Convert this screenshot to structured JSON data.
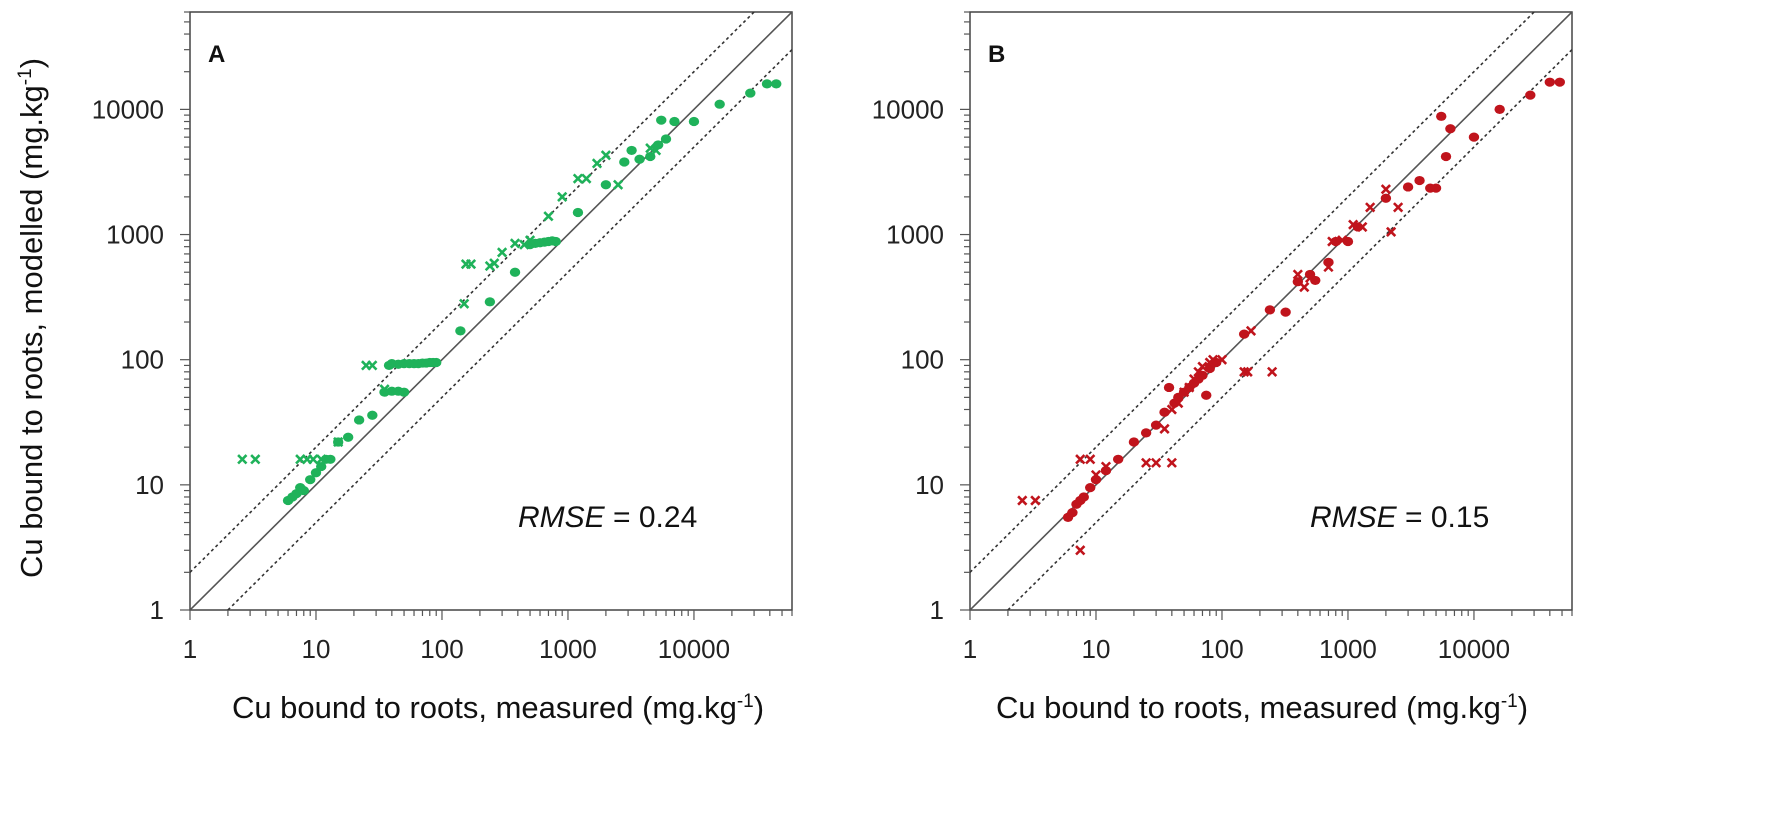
{
  "chart_data": [
    {
      "type": "scatter",
      "panel_label": "A",
      "xlabel": "Cu bound to roots, measured (mg.kg",
      "xlabel_sup": "-1",
      "xlabel_end": ")",
      "ylabel": "Cu bound to roots, modelled (mg.kg",
      "ylabel_sup": "-1",
      "ylabel_end": ")",
      "x_scale": "log",
      "y_scale": "log",
      "xlim": [
        1,
        60000
      ],
      "ylim": [
        1,
        60000
      ],
      "x_ticks": [
        "1",
        "10",
        "100",
        "1000",
        "10000"
      ],
      "y_ticks": [
        "1",
        "10",
        "100",
        "1000",
        "10000"
      ],
      "annotation": {
        "label": "RMSE",
        "value": " = 0.24"
      },
      "reference_lines": {
        "identity": "solid",
        "bounds": "dotted",
        "bound_factor": 2
      },
      "color": "#1fb25a",
      "series": [
        {
          "marker": "dot",
          "points": [
            [
              6,
              7.5
            ],
            [
              6.5,
              8
            ],
            [
              7,
              8.5
            ],
            [
              7.5,
              9.5
            ],
            [
              8,
              9
            ],
            [
              9,
              11
            ],
            [
              10,
              12.5
            ],
            [
              11,
              14
            ],
            [
              12,
              16
            ],
            [
              13,
              16
            ],
            [
              15,
              22
            ],
            [
              18,
              24
            ],
            [
              22,
              33
            ],
            [
              28,
              36
            ],
            [
              35,
              55
            ],
            [
              40,
              56
            ],
            [
              45,
              56
            ],
            [
              50,
              55
            ],
            [
              38,
              90
            ],
            [
              40,
              93
            ],
            [
              45,
              92
            ],
            [
              50,
              93
            ],
            [
              55,
              93
            ],
            [
              60,
              93
            ],
            [
              65,
              93
            ],
            [
              70,
              94
            ],
            [
              75,
              94
            ],
            [
              80,
              95
            ],
            [
              85,
              95
            ],
            [
              90,
              95
            ],
            [
              140,
              170
            ],
            [
              240,
              290
            ],
            [
              380,
              500
            ],
            [
              500,
              830
            ],
            [
              550,
              850
            ],
            [
              600,
              860
            ],
            [
              650,
              870
            ],
            [
              700,
              880
            ],
            [
              750,
              890
            ],
            [
              800,
              880
            ],
            [
              1200,
              1500
            ],
            [
              2000,
              2500
            ],
            [
              2800,
              3800
            ],
            [
              3200,
              4700
            ],
            [
              3700,
              4000
            ],
            [
              4500,
              4200
            ],
            [
              5200,
              5200
            ],
            [
              5500,
              8200
            ],
            [
              6000,
              5800
            ],
            [
              7000,
              8000
            ],
            [
              10000,
              8000
            ],
            [
              16000,
              11000
            ],
            [
              28000,
              13500
            ],
            [
              38000,
              16000
            ],
            [
              45000,
              16000
            ]
          ]
        },
        {
          "marker": "cross",
          "points": [
            [
              2.6,
              16
            ],
            [
              3.3,
              16
            ],
            [
              7.5,
              16
            ],
            [
              8.5,
              16
            ],
            [
              9.5,
              16
            ],
            [
              11,
              16
            ],
            [
              15,
              22
            ],
            [
              25,
              90
            ],
            [
              28,
              90
            ],
            [
              35,
              58
            ],
            [
              150,
              280
            ],
            [
              155,
              580
            ],
            [
              170,
              580
            ],
            [
              240,
              560
            ],
            [
              260,
              590
            ],
            [
              300,
              720
            ],
            [
              380,
              850
            ],
            [
              450,
              830
            ],
            [
              500,
              900
            ],
            [
              700,
              1400
            ],
            [
              900,
              2000
            ],
            [
              1200,
              2800
            ],
            [
              1400,
              2800
            ],
            [
              1700,
              3700
            ],
            [
              2000,
              4300
            ],
            [
              4500,
              4900
            ],
            [
              5000,
              4700
            ],
            [
              2500,
              2500
            ]
          ]
        }
      ]
    },
    {
      "type": "scatter",
      "panel_label": "B",
      "xlabel": "Cu bound to roots, measured (mg.kg",
      "xlabel_sup": "-1",
      "xlabel_end": ")",
      "x_scale": "log",
      "y_scale": "log",
      "xlim": [
        1,
        60000
      ],
      "ylim": [
        1,
        60000
      ],
      "x_ticks": [
        "1",
        "10",
        "100",
        "1000",
        "10000"
      ],
      "y_ticks": [
        "1",
        "10",
        "100",
        "1000",
        "10000"
      ],
      "annotation": {
        "label": "RMSE",
        "value": " = 0.15"
      },
      "reference_lines": {
        "identity": "solid",
        "bounds": "dotted",
        "bound_factor": 2
      },
      "color": "#c0141c",
      "series": [
        {
          "marker": "dot",
          "points": [
            [
              6,
              5.5
            ],
            [
              6.5,
              6
            ],
            [
              7,
              7
            ],
            [
              7.5,
              7.5
            ],
            [
              8,
              8
            ],
            [
              9,
              9.5
            ],
            [
              10,
              11
            ],
            [
              12,
              13
            ],
            [
              15,
              16
            ],
            [
              20,
              22
            ],
            [
              25,
              26
            ],
            [
              30,
              30
            ],
            [
              35,
              38
            ],
            [
              38,
              60
            ],
            [
              42,
              45
            ],
            [
              45,
              50
            ],
            [
              50,
              55
            ],
            [
              55,
              60
            ],
            [
              60,
              65
            ],
            [
              65,
              70
            ],
            [
              70,
              75
            ],
            [
              75,
              52
            ],
            [
              80,
              85
            ],
            [
              90,
              95
            ],
            [
              150,
              160
            ],
            [
              240,
              250
            ],
            [
              320,
              240
            ],
            [
              400,
              420
            ],
            [
              500,
              480
            ],
            [
              550,
              430
            ],
            [
              700,
              600
            ],
            [
              800,
              880
            ],
            [
              1000,
              880
            ],
            [
              1200,
              1150
            ],
            [
              2000,
              1950
            ],
            [
              3000,
              2400
            ],
            [
              3700,
              2700
            ],
            [
              4500,
              2350
            ],
            [
              5000,
              2350
            ],
            [
              5500,
              8800
            ],
            [
              6000,
              4200
            ],
            [
              6500,
              7000
            ],
            [
              10000,
              6000
            ],
            [
              16000,
              10000
            ],
            [
              28000,
              13000
            ],
            [
              40000,
              16500
            ],
            [
              48000,
              16500
            ]
          ]
        },
        {
          "marker": "cross",
          "points": [
            [
              2.6,
              7.5
            ],
            [
              3.3,
              7.5
            ],
            [
              7.5,
              3
            ],
            [
              7.5,
              16
            ],
            [
              9,
              16
            ],
            [
              10,
              12
            ],
            [
              12,
              14
            ],
            [
              25,
              15
            ],
            [
              30,
              15
            ],
            [
              40,
              15
            ],
            [
              35,
              28
            ],
            [
              40,
              40
            ],
            [
              45,
              45
            ],
            [
              50,
              55
            ],
            [
              55,
              60
            ],
            [
              60,
              70
            ],
            [
              65,
              80
            ],
            [
              70,
              88
            ],
            [
              80,
              95
            ],
            [
              85,
              100
            ],
            [
              100,
              100
            ],
            [
              150,
              80
            ],
            [
              160,
              80
            ],
            [
              170,
              170
            ],
            [
              250,
              80
            ],
            [
              400,
              480
            ],
            [
              450,
              380
            ],
            [
              500,
              450
            ],
            [
              700,
              550
            ],
            [
              750,
              880
            ],
            [
              900,
              900
            ],
            [
              1100,
              1200
            ],
            [
              1300,
              1150
            ],
            [
              1500,
              1650
            ],
            [
              2000,
              2300
            ],
            [
              2200,
              1050
            ],
            [
              2500,
              1650
            ]
          ]
        }
      ]
    }
  ]
}
